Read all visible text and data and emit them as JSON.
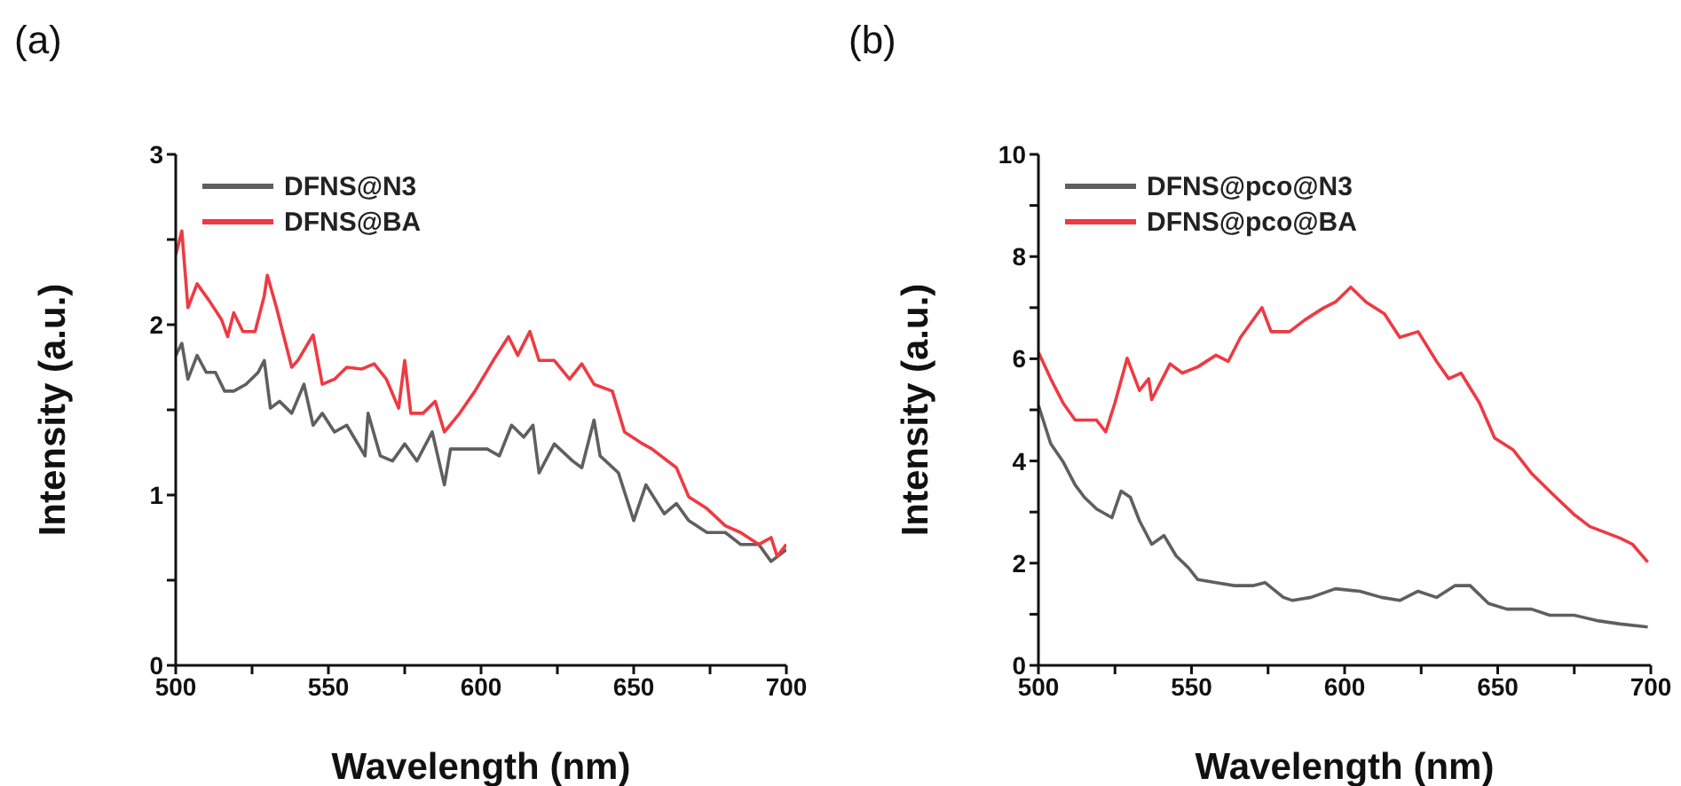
{
  "chart_data": [
    {
      "type": "line",
      "annotations": [
        "(a)"
      ],
      "xlabel": "Wavelength (nm)",
      "ylabel": "Intensity (a.u.)",
      "xlim": [
        500,
        700
      ],
      "ylim": [
        0,
        3
      ],
      "xticks": [
        500,
        {
          "value": 525,
          "label": null
        },
        550,
        {
          "value": 575,
          "label": null
        },
        600,
        {
          "value": 625,
          "label": null
        },
        650,
        {
          "value": 675,
          "label": null
        },
        700
      ],
      "yticks": [
        0,
        {
          "value": 0.5,
          "label": null
        },
        1,
        {
          "value": 1.5,
          "label": null
        },
        2,
        {
          "value": 2.5,
          "label": null
        },
        3
      ],
      "legend": "top left",
      "grid": false,
      "marker": "none",
      "line_style": "solid",
      "series": [
        {
          "name": "DFNS@N3",
          "color": "#5f5f5f",
          "x": [
            500,
            502,
            504,
            507,
            510,
            513,
            516,
            519,
            523,
            527,
            529,
            531,
            534,
            538,
            542,
            545,
            548,
            552,
            556,
            562,
            563,
            567,
            571,
            575,
            579,
            584,
            588,
            590,
            596,
            602,
            606,
            610,
            614,
            617,
            619,
            624,
            630,
            633,
            637,
            639,
            645,
            650,
            654,
            660,
            664,
            668,
            674,
            680,
            685,
            691,
            695,
            700
          ],
          "values": [
            1.82,
            1.89,
            1.68,
            1.82,
            1.72,
            1.72,
            1.61,
            1.61,
            1.65,
            1.72,
            1.79,
            1.51,
            1.55,
            1.48,
            1.65,
            1.41,
            1.48,
            1.37,
            1.41,
            1.23,
            1.48,
            1.23,
            1.2,
            1.3,
            1.2,
            1.37,
            1.06,
            1.27,
            1.27,
            1.27,
            1.23,
            1.41,
            1.34,
            1.41,
            1.13,
            1.3,
            1.2,
            1.16,
            1.44,
            1.23,
            1.13,
            0.85,
            1.06,
            0.89,
            0.95,
            0.85,
            0.78,
            0.78,
            0.71,
            0.71,
            0.61,
            0.68
          ]
        },
        {
          "name": "DFNS@BA",
          "color": "#ee3a43",
          "x": [
            500,
            502,
            504,
            507,
            511,
            515,
            517,
            519,
            522,
            526,
            529,
            530,
            533,
            535,
            538,
            540,
            545,
            548,
            552,
            556,
            561,
            565,
            569,
            573,
            575,
            577,
            581,
            585,
            588,
            593,
            598,
            604,
            609,
            612,
            616,
            619,
            624,
            629,
            633,
            637,
            643,
            647,
            653,
            656,
            664,
            668,
            674,
            680,
            685,
            691,
            695,
            697,
            700
          ],
          "values": [
            2.41,
            2.55,
            2.1,
            2.24,
            2.14,
            2.03,
            1.93,
            2.07,
            1.96,
            1.96,
            2.17,
            2.29,
            2.1,
            1.96,
            1.75,
            1.79,
            1.94,
            1.65,
            1.68,
            1.75,
            1.74,
            1.77,
            1.68,
            1.51,
            1.79,
            1.48,
            1.48,
            1.55,
            1.37,
            1.48,
            1.61,
            1.79,
            1.93,
            1.82,
            1.96,
            1.79,
            1.79,
            1.68,
            1.77,
            1.65,
            1.61,
            1.37,
            1.3,
            1.27,
            1.16,
            0.99,
            0.92,
            0.82,
            0.78,
            0.71,
            0.75,
            0.64,
            0.71
          ]
        }
      ]
    },
    {
      "type": "line",
      "annotations": [
        "(b)"
      ],
      "xlabel": "Wavelength (nm)",
      "ylabel": "Intensity (a.u.)",
      "xlim": [
        500,
        700
      ],
      "ylim": [
        0,
        10
      ],
      "xticks": [
        500,
        {
          "value": 525,
          "label": null
        },
        550,
        {
          "value": 575,
          "label": null
        },
        600,
        {
          "value": 625,
          "label": null
        },
        650,
        {
          "value": 675,
          "label": null
        },
        700
      ],
      "yticks": [
        0,
        {
          "value": 1,
          "label": null
        },
        2,
        {
          "value": 3,
          "label": null
        },
        4,
        {
          "value": 5,
          "label": null
        },
        6,
        {
          "value": 7,
          "label": null
        },
        8,
        {
          "value": 9,
          "label": null
        },
        10
      ],
      "legend": "top left",
      "grid": false,
      "marker": "none",
      "line_style": "solid",
      "series": [
        {
          "name": "DFNS@pco@N3",
          "color": "#5f5f5f",
          "x": [
            500,
            504,
            508,
            512,
            515,
            519,
            524,
            527,
            530,
            533,
            537,
            541,
            545,
            549,
            552,
            558,
            564,
            570,
            574,
            580,
            583,
            589,
            597,
            605,
            612,
            618,
            624,
            630,
            636,
            641,
            647,
            653,
            661,
            667,
            675,
            683,
            690,
            699
          ],
          "values": [
            5.09,
            4.34,
            3.99,
            3.53,
            3.29,
            3.06,
            2.89,
            3.41,
            3.29,
            2.83,
            2.37,
            2.54,
            2.14,
            1.91,
            1.68,
            1.62,
            1.56,
            1.56,
            1.62,
            1.33,
            1.27,
            1.33,
            1.5,
            1.45,
            1.33,
            1.27,
            1.45,
            1.33,
            1.56,
            1.56,
            1.21,
            1.1,
            1.1,
            0.98,
            0.98,
            0.87,
            0.81,
            0.75
          ]
        },
        {
          "name": "DFNS@pco@BA",
          "color": "#ee3a43",
          "x": [
            500,
            504,
            508,
            512,
            516,
            519,
            522,
            525,
            529,
            533,
            536,
            537,
            543,
            547,
            552,
            558,
            562,
            566,
            573,
            576,
            582,
            587,
            593,
            597,
            602,
            607,
            613,
            618,
            624,
            630,
            634,
            638,
            644,
            649,
            655,
            661,
            669,
            675,
            680,
            690,
            694,
            699
          ],
          "values": [
            6.13,
            5.61,
            5.14,
            4.8,
            4.8,
            4.8,
            4.57,
            5.14,
            6.01,
            5.38,
            5.61,
            5.2,
            5.9,
            5.72,
            5.84,
            6.07,
            5.95,
            6.42,
            7.0,
            6.53,
            6.53,
            6.76,
            6.99,
            7.11,
            7.4,
            7.11,
            6.88,
            6.42,
            6.53,
            5.95,
            5.61,
            5.72,
            5.14,
            4.45,
            4.22,
            3.76,
            3.29,
            2.95,
            2.72,
            2.49,
            2.37,
            2.02
          ]
        }
      ]
    }
  ]
}
